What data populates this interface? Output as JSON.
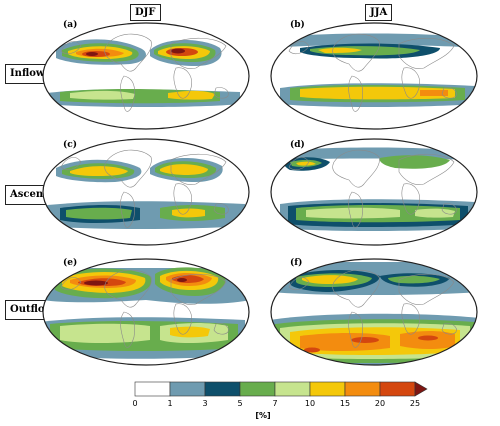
{
  "columns": [
    "DJF",
    "JJA"
  ],
  "rows": [
    "Inflow",
    "Ascent",
    "Outflow"
  ],
  "panels": [
    "(a)",
    "(b)",
    "(c)",
    "(d)",
    "(e)",
    "(f)"
  ],
  "colorbar": {
    "ticks": [
      "0",
      "1",
      "3",
      "5",
      "7",
      "10",
      "15",
      "20",
      "25"
    ],
    "colors": [
      "#ffffff",
      "#6f9bb0",
      "#0e4f6b",
      "#68ad4d",
      "#c6e48e",
      "#f4c80a",
      "#f38c0f",
      "#d4470f",
      "#7e1612"
    ],
    "unit": "[%]",
    "extend": "max"
  }
}
